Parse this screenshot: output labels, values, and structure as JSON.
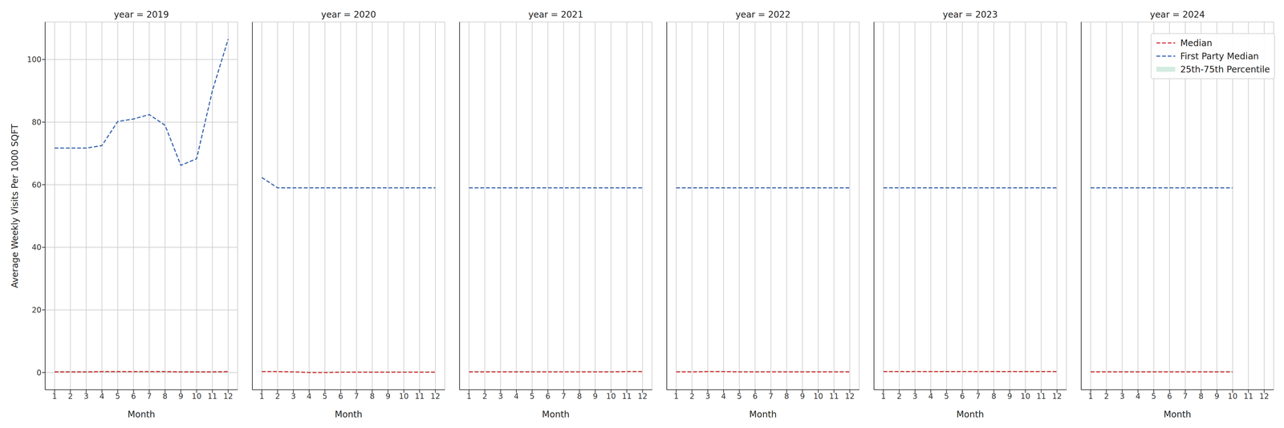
{
  "chart_data": [
    {
      "type": "line",
      "title": "year = 2019",
      "x_label": "Month",
      "y_label": "Average Weekly Visits Per 1000 SQFT",
      "x": [
        1,
        2,
        3,
        4,
        5,
        6,
        7,
        8,
        9,
        10,
        11,
        12
      ],
      "xlim": [
        0.4,
        12.6
      ],
      "xticks": [
        1,
        2,
        3,
        4,
        5,
        6,
        7,
        8,
        9,
        10,
        11,
        12
      ],
      "ylim": [
        -5.5,
        112
      ],
      "yticks": [
        0,
        20,
        40,
        60,
        80,
        100
      ],
      "grid": true,
      "series": [
        {
          "name": "Median",
          "color": "#d62f36",
          "line_style": "dashed",
          "values": [
            0.2,
            0.2,
            0.2,
            0.3,
            0.3,
            0.3,
            0.3,
            0.3,
            0.2,
            0.2,
            0.2,
            0.3
          ]
        },
        {
          "name": "First Party Median",
          "color": "#3a66b0",
          "line_style": "dashed",
          "values": [
            71.7,
            71.7,
            71.7,
            72.5,
            80.2,
            81.0,
            82.4,
            79.0,
            66.2,
            68.3,
            90.0,
            106.5
          ]
        },
        {
          "name": "25th-75th Percentile",
          "type": "area",
          "color": "#d3ece1",
          "lower": [
            0.1,
            0.1,
            0.1,
            0.1,
            0.1,
            0.1,
            0.1,
            0.1,
            0.1,
            0.1,
            0.1,
            0.1
          ],
          "upper": [
            0.5,
            0.5,
            0.5,
            0.5,
            0.5,
            0.5,
            0.5,
            0.5,
            0.5,
            0.5,
            0.5,
            0.5
          ]
        }
      ]
    },
    {
      "type": "line",
      "title": "year = 2020",
      "x_label": "Month",
      "tick_labels": "x",
      "x": [
        1,
        2,
        3,
        4,
        5,
        6,
        7,
        8,
        9,
        10,
        11,
        12
      ],
      "xlim": [
        0.4,
        12.6
      ],
      "xticks": [
        1,
        2,
        3,
        4,
        5,
        6,
        7,
        8,
        9,
        10,
        11,
        12
      ],
      "ylim": [
        -5.5,
        112
      ],
      "yticks": [
        0,
        20,
        40,
        60,
        80,
        100
      ],
      "grid": true,
      "series": [
        {
          "name": "Median",
          "color": "#d62f36",
          "line_style": "dashed",
          "values": [
            0.3,
            0.3,
            0.2,
            0.0,
            0.0,
            0.1,
            0.1,
            0.1,
            0.1,
            0.1,
            0.1,
            0.1
          ]
        },
        {
          "name": "First Party Median",
          "color": "#3a66b0",
          "line_style": "dashed",
          "values": [
            62.3,
            59,
            59,
            59,
            59,
            59,
            59,
            59,
            59,
            59,
            59,
            59
          ]
        },
        {
          "name": "25th-75th Percentile",
          "type": "area",
          "color": "#d3ece1",
          "lower": [
            0.1,
            0.1,
            0.0,
            0.0,
            0.0,
            0.0,
            0.0,
            0.0,
            0.0,
            0.0,
            0.0,
            0.0
          ],
          "upper": [
            0.5,
            0.5,
            0.4,
            0.3,
            0.3,
            0.4,
            0.4,
            0.4,
            0.4,
            0.4,
            0.4,
            0.4
          ]
        }
      ]
    },
    {
      "type": "line",
      "title": "year = 2021",
      "x_label": "Month",
      "tick_labels": "x",
      "x": [
        1,
        2,
        3,
        4,
        5,
        6,
        7,
        8,
        9,
        10,
        11,
        12
      ],
      "xlim": [
        0.4,
        12.6
      ],
      "xticks": [
        1,
        2,
        3,
        4,
        5,
        6,
        7,
        8,
        9,
        10,
        11,
        12
      ],
      "ylim": [
        -5.5,
        112
      ],
      "yticks": [
        0,
        20,
        40,
        60,
        80,
        100
      ],
      "grid": true,
      "series": [
        {
          "name": "Median",
          "color": "#d62f36",
          "line_style": "dashed",
          "values": [
            0.2,
            0.2,
            0.2,
            0.2,
            0.2,
            0.2,
            0.2,
            0.2,
            0.2,
            0.2,
            0.3,
            0.3
          ]
        },
        {
          "name": "First Party Median",
          "color": "#3a66b0",
          "line_style": "dashed",
          "values": [
            59,
            59,
            59,
            59,
            59,
            59,
            59,
            59,
            59,
            59,
            59,
            59
          ]
        },
        {
          "name": "25th-75th Percentile",
          "type": "area",
          "color": "#d3ece1",
          "lower": [
            0.1,
            0.1,
            0.1,
            0.1,
            0.1,
            0.1,
            0.1,
            0.1,
            0.1,
            0.1,
            0.1,
            0.1
          ],
          "upper": [
            0.5,
            0.5,
            0.5,
            0.5,
            0.5,
            0.5,
            0.5,
            0.5,
            0.5,
            0.5,
            0.5,
            0.5
          ]
        }
      ]
    },
    {
      "type": "line",
      "title": "year = 2022",
      "x_label": "Month",
      "tick_labels": "x",
      "x": [
        1,
        2,
        3,
        4,
        5,
        6,
        7,
        8,
        9,
        10,
        11,
        12
      ],
      "xlim": [
        0.4,
        12.6
      ],
      "xticks": [
        1,
        2,
        3,
        4,
        5,
        6,
        7,
        8,
        9,
        10,
        11,
        12
      ],
      "ylim": [
        -5.5,
        112
      ],
      "yticks": [
        0,
        20,
        40,
        60,
        80,
        100
      ],
      "grid": true,
      "series": [
        {
          "name": "Median",
          "color": "#d62f36",
          "line_style": "dashed",
          "values": [
            0.2,
            0.2,
            0.3,
            0.3,
            0.2,
            0.2,
            0.2,
            0.2,
            0.2,
            0.2,
            0.2,
            0.2
          ]
        },
        {
          "name": "First Party Median",
          "color": "#3a66b0",
          "line_style": "dashed",
          "values": [
            59,
            59,
            59,
            59,
            59,
            59,
            59,
            59,
            59,
            59,
            59,
            59
          ]
        },
        {
          "name": "25th-75th Percentile",
          "type": "area",
          "color": "#d3ece1",
          "lower": [
            0.1,
            0.1,
            0.1,
            0.1,
            0.1,
            0.1,
            0.1,
            0.1,
            0.1,
            0.1,
            0.1,
            0.1
          ],
          "upper": [
            0.5,
            0.5,
            0.5,
            0.5,
            0.5,
            0.5,
            0.5,
            0.5,
            0.5,
            0.5,
            0.5,
            0.5
          ]
        }
      ]
    },
    {
      "type": "line",
      "title": "year = 2023",
      "x_label": "Month",
      "tick_labels": "x",
      "x": [
        1,
        2,
        3,
        4,
        5,
        6,
        7,
        8,
        9,
        10,
        11,
        12
      ],
      "xlim": [
        0.4,
        12.6
      ],
      "xticks": [
        1,
        2,
        3,
        4,
        5,
        6,
        7,
        8,
        9,
        10,
        11,
        12
      ],
      "ylim": [
        -5.5,
        112
      ],
      "yticks": [
        0,
        20,
        40,
        60,
        80,
        100
      ],
      "grid": true,
      "series": [
        {
          "name": "Median",
          "color": "#d62f36",
          "line_style": "dashed",
          "values": [
            0.3,
            0.3,
            0.3,
            0.3,
            0.3,
            0.3,
            0.3,
            0.3,
            0.3,
            0.3,
            0.3,
            0.3
          ]
        },
        {
          "name": "First Party Median",
          "color": "#3a66b0",
          "line_style": "dashed",
          "values": [
            59,
            59,
            59,
            59,
            59,
            59,
            59,
            59,
            59,
            59,
            59,
            59
          ]
        },
        {
          "name": "25th-75th Percentile",
          "type": "area",
          "color": "#d3ece1",
          "lower": [
            0.1,
            0.1,
            0.1,
            0.1,
            0.1,
            0.1,
            0.1,
            0.1,
            0.1,
            0.1,
            0.1,
            0.1
          ],
          "upper": [
            0.5,
            0.5,
            0.5,
            0.5,
            0.5,
            0.5,
            0.5,
            0.5,
            0.5,
            0.5,
            0.5,
            0.5
          ]
        }
      ]
    },
    {
      "type": "line",
      "title": "year = 2024",
      "x_label": "Month",
      "tick_labels": "x",
      "legend": "upper right",
      "x": [
        1,
        2,
        3,
        4,
        5,
        6,
        7,
        8,
        9,
        10,
        11,
        12
      ],
      "xlim": [
        0.4,
        12.6
      ],
      "xticks": [
        1,
        2,
        3,
        4,
        5,
        6,
        7,
        8,
        9,
        10,
        11,
        12
      ],
      "ylim": [
        -5.5,
        112
      ],
      "yticks": [
        0,
        20,
        40,
        60,
        80,
        100
      ],
      "grid": true,
      "series": [
        {
          "name": "Median",
          "color": "#d62f36",
          "line_style": "dashed",
          "values": [
            0.2,
            0.2,
            0.2,
            0.2,
            0.2,
            0.2,
            0.2,
            0.2,
            0.2,
            0.2,
            null,
            null
          ]
        },
        {
          "name": "First Party Median",
          "color": "#3a66b0",
          "line_style": "dashed",
          "values": [
            59,
            59,
            59,
            59,
            59,
            59,
            59,
            59,
            59,
            59,
            null,
            null
          ]
        },
        {
          "name": "25th-75th Percentile",
          "type": "area",
          "color": "#d3ece1",
          "lower": [
            0.1,
            0.1,
            0.1,
            0.1,
            0.1,
            0.1,
            0.1,
            0.1,
            0.1,
            0.1,
            null,
            null
          ],
          "upper": [
            0.5,
            0.5,
            0.5,
            0.5,
            0.5,
            0.5,
            0.5,
            0.5,
            0.5,
            0.5,
            null,
            null
          ]
        }
      ]
    }
  ]
}
